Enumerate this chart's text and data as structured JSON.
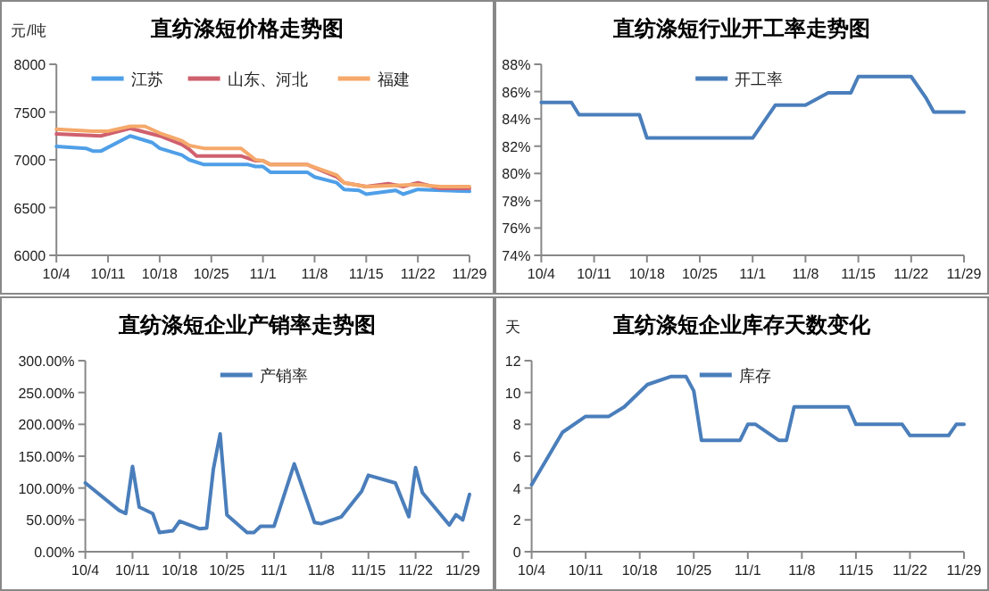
{
  "chart_data": [
    {
      "type": "line",
      "title": "直纺涤短价格走势图",
      "ylabel": "元/吨",
      "legend": "top",
      "xlim": [
        "--10-04",
        "--11-29"
      ],
      "xticks": [
        {
          "value": "--10-04",
          "label": "10/4"
        },
        {
          "value": "--10-11",
          "label": "10/11"
        },
        {
          "value": "--10-18",
          "label": "10/18"
        },
        {
          "value": "--10-25",
          "label": "10/25"
        },
        {
          "value": "--11-01",
          "label": "11/1"
        },
        {
          "value": "--11-08",
          "label": "11/8"
        },
        {
          "value": "--11-15",
          "label": "11/15"
        },
        {
          "value": "--11-22",
          "label": "11/22"
        },
        {
          "value": "--11-29",
          "label": "11/29"
        }
      ],
      "ylim": [
        6000,
        8000
      ],
      "yticks": [
        6000,
        6500,
        7000,
        7500,
        8000
      ],
      "series": [
        {
          "name": "江苏",
          "color": "#4f9fe8",
          "x": [
            "--10-04",
            "--10-08",
            "--10-09",
            "--10-10",
            "--10-14",
            "--10-17",
            "--10-18",
            "--10-21",
            "--10-22",
            "--10-24",
            "--10-30",
            "--10-31",
            "--11-01",
            "--11-02",
            "--11-07",
            "--11-08",
            "--11-11",
            "--11-12",
            "--11-14",
            "--11-15",
            "--11-19",
            "--11-20",
            "--11-22",
            "--11-29"
          ],
          "values": [
            7140,
            7120,
            7090,
            7090,
            7250,
            7180,
            7120,
            7050,
            7000,
            6950,
            6950,
            6930,
            6930,
            6870,
            6870,
            6820,
            6760,
            6690,
            6680,
            6640,
            6680,
            6640,
            6690,
            6670
          ]
        },
        {
          "name": "山东、河北",
          "color": "#d0606e",
          "x": [
            "--10-04",
            "--10-10",
            "--10-14",
            "--10-18",
            "--10-21",
            "--10-22",
            "--10-23",
            "--10-29",
            "--10-31",
            "--11-01",
            "--11-02",
            "--11-07",
            "--11-11",
            "--11-12",
            "--11-15",
            "--11-18",
            "--11-20",
            "--11-22",
            "--11-25",
            "--11-29"
          ],
          "values": [
            7270,
            7250,
            7330,
            7250,
            7160,
            7110,
            7040,
            7040,
            6990,
            6990,
            6950,
            6950,
            6820,
            6760,
            6720,
            6750,
            6720,
            6760,
            6700,
            6700
          ]
        },
        {
          "name": "福建",
          "color": "#f5a96a",
          "x": [
            "--10-04",
            "--10-09",
            "--10-11",
            "--10-14",
            "--10-16",
            "--10-18",
            "--10-21",
            "--10-22",
            "--10-24",
            "--10-29",
            "--10-31",
            "--11-01",
            "--11-02",
            "--11-07",
            "--11-11",
            "--11-12",
            "--11-15",
            "--11-22",
            "--11-25",
            "--11-29"
          ],
          "values": [
            7320,
            7300,
            7300,
            7350,
            7350,
            7280,
            7200,
            7150,
            7120,
            7120,
            7000,
            6990,
            6950,
            6950,
            6840,
            6760,
            6720,
            6740,
            6720,
            6720
          ]
        }
      ]
    },
    {
      "type": "line",
      "title": "直纺涤短行业开工率走势图",
      "legend": "top",
      "xlim": [
        "--10-04",
        "--11-29"
      ],
      "xticks": [
        {
          "value": "--10-04",
          "label": "10/4"
        },
        {
          "value": "--10-11",
          "label": "10/11"
        },
        {
          "value": "--10-18",
          "label": "10/18"
        },
        {
          "value": "--10-25",
          "label": "10/25"
        },
        {
          "value": "--11-01",
          "label": "11/1"
        },
        {
          "value": "--11-08",
          "label": "11/8"
        },
        {
          "value": "--11-15",
          "label": "11/15"
        },
        {
          "value": "--11-22",
          "label": "11/22"
        },
        {
          "value": "--11-29",
          "label": "11/29"
        }
      ],
      "ylim": [
        74,
        88
      ],
      "yticks": [
        {
          "value": 74,
          "label": "74%"
        },
        {
          "value": 76,
          "label": "76%"
        },
        {
          "value": 78,
          "label": "78%"
        },
        {
          "value": 80,
          "label": "80%"
        },
        {
          "value": 82,
          "label": "82%"
        },
        {
          "value": 84,
          "label": "84%"
        },
        {
          "value": 86,
          "label": "86%"
        },
        {
          "value": 88,
          "label": "88%"
        }
      ],
      "series": [
        {
          "name": "开工率",
          "color": "#4a7ebb",
          "x": [
            "--10-04",
            "--10-08",
            "--10-09",
            "--10-17",
            "--10-18",
            "--11-01",
            "--11-04",
            "--11-08",
            "--11-11",
            "--11-14",
            "--11-15",
            "--11-22",
            "--11-24",
            "--11-25",
            "--11-29"
          ],
          "values": [
            85.2,
            85.2,
            84.3,
            84.3,
            82.6,
            82.6,
            85.0,
            85.0,
            85.9,
            85.9,
            87.1,
            87.1,
            85.5,
            84.5,
            84.5
          ]
        }
      ]
    },
    {
      "type": "line",
      "title": "直纺涤短企业产销率走势图",
      "legend": "top",
      "xlim": [
        "--10-04",
        "--11-30"
      ],
      "xticks": [
        {
          "value": "--10-04",
          "label": "10/4"
        },
        {
          "value": "--10-11",
          "label": "10/11"
        },
        {
          "value": "--10-18",
          "label": "10/18"
        },
        {
          "value": "--10-25",
          "label": "10/25"
        },
        {
          "value": "--11-01",
          "label": "11/1"
        },
        {
          "value": "--11-08",
          "label": "11/8"
        },
        {
          "value": "--11-15",
          "label": "11/15"
        },
        {
          "value": "--11-22",
          "label": "11/22"
        },
        {
          "value": "--11-29",
          "label": "11/29"
        }
      ],
      "ylim": [
        0,
        300
      ],
      "yticks": [
        {
          "value": 0,
          "label": "0.00%"
        },
        {
          "value": 50,
          "label": "50.00%"
        },
        {
          "value": 100,
          "label": "100.00%"
        },
        {
          "value": 150,
          "label": "150.00%"
        },
        {
          "value": 200,
          "label": "200.00%"
        },
        {
          "value": 250,
          "label": "250.00%"
        },
        {
          "value": 300,
          "label": "300.00%"
        }
      ],
      "series": [
        {
          "name": "产销率",
          "color": "#4a7ebb",
          "x": [
            "--10-04",
            "--10-09",
            "--10-10",
            "--10-11",
            "--10-12",
            "--10-14",
            "--10-15",
            "--10-17",
            "--10-18",
            "--10-21",
            "--10-22",
            "--10-23",
            "--10-24",
            "--10-25",
            "--10-28",
            "--10-29",
            "--10-30",
            "--11-01",
            "--11-04",
            "--11-07",
            "--11-08",
            "--11-11",
            "--11-14",
            "--11-15",
            "--11-19",
            "--11-21",
            "--11-22",
            "--11-23",
            "--11-27",
            "--11-28",
            "--11-29",
            "--11-30"
          ],
          "values": [
            108,
            65,
            60,
            134,
            70,
            60,
            30,
            33,
            48,
            36,
            37,
            130,
            185,
            58,
            30,
            30,
            40,
            40,
            138,
            46,
            44,
            55,
            95,
            120,
            108,
            55,
            132,
            93,
            42,
            58,
            50,
            90
          ]
        }
      ]
    },
    {
      "type": "line",
      "title": "直纺涤短企业库存天数变化",
      "ylabel": "天",
      "legend": "top",
      "xlim": [
        "--10-04",
        "--11-29"
      ],
      "xticks": [
        {
          "value": "--10-04",
          "label": "10/4"
        },
        {
          "value": "--10-11",
          "label": "10/11"
        },
        {
          "value": "--10-18",
          "label": "10/18"
        },
        {
          "value": "--10-25",
          "label": "10/25"
        },
        {
          "value": "--11-01",
          "label": "11/1"
        },
        {
          "value": "--11-08",
          "label": "11/8"
        },
        {
          "value": "--11-15",
          "label": "11/15"
        },
        {
          "value": "--11-22",
          "label": "11/22"
        },
        {
          "value": "--11-29",
          "label": "11/29"
        }
      ],
      "ylim": [
        0,
        12
      ],
      "yticks": [
        0,
        2,
        4,
        6,
        8,
        10,
        12
      ],
      "series": [
        {
          "name": "库存",
          "color": "#4a7ebb",
          "x": [
            "--10-04",
            "--10-08",
            "--10-11",
            "--10-14",
            "--10-16",
            "--10-19",
            "--10-22",
            "--10-24",
            "--10-25",
            "--10-26",
            "--10-31",
            "--11-01",
            "--11-02",
            "--11-05",
            "--11-06",
            "--11-07",
            "--11-14",
            "--11-15",
            "--11-21",
            "--11-22",
            "--11-27",
            "--11-28",
            "--11-29"
          ],
          "values": [
            4.2,
            7.5,
            8.5,
            8.5,
            9.1,
            10.5,
            11.0,
            11.0,
            10.1,
            7.0,
            7.0,
            8.0,
            8.0,
            7.0,
            7.0,
            9.1,
            9.1,
            8.0,
            8.0,
            7.3,
            7.3,
            8.0,
            8.0
          ]
        }
      ]
    }
  ]
}
